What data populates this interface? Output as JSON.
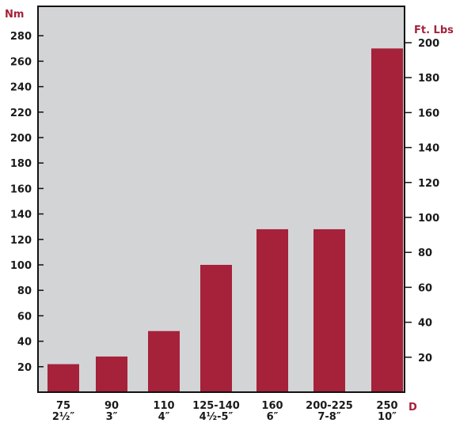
{
  "chart_data": {
    "type": "bar",
    "categories": [
      {
        "line1": "75",
        "line2": "2½″"
      },
      {
        "line1": "90",
        "line2": "3″"
      },
      {
        "line1": "110",
        "line2": "4″"
      },
      {
        "line1": "125-140",
        "line2": "4½-5″"
      },
      {
        "line1": "160",
        "line2": "6″"
      },
      {
        "line1": "200-225",
        "line2": "7-8″"
      },
      {
        "line1": "250",
        "line2": "10″"
      }
    ],
    "values": [
      22,
      28,
      48,
      100,
      128,
      128,
      270
    ],
    "y_left": {
      "label": "Nm",
      "ticks": [
        20,
        40,
        60,
        80,
        100,
        120,
        140,
        160,
        180,
        200,
        220,
        240,
        260,
        280
      ],
      "min": 0,
      "max": 300
    },
    "y_right": {
      "label": "Ft. Lbs",
      "ticks": [
        20,
        40,
        60,
        80,
        100,
        120,
        140,
        160,
        180,
        200
      ]
    },
    "x_label": "D",
    "grid": false,
    "colors": {
      "bar": "#a6213a",
      "plot_background": "#d3d4d6",
      "unit_label": "#a6213a",
      "text": "#1a1a1a"
    }
  }
}
